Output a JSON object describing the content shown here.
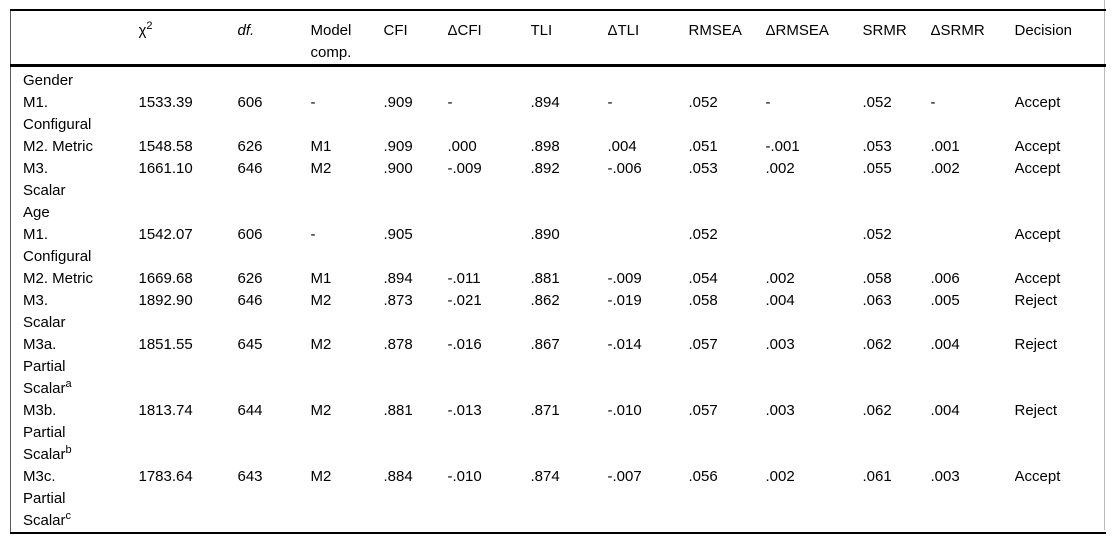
{
  "table": {
    "title_semantic": "measurement-invariance-fit-indices",
    "headers": [
      "",
      "χ^2",
      "df.",
      "Model comp.",
      "CFI",
      "ΔCFI",
      "TLI",
      "ΔTLI",
      "RMSEA",
      "ΔRMSEA",
      "SRMR",
      "ΔSRMR",
      "Decision"
    ],
    "column_keys": [
      "model",
      "chi2",
      "df",
      "model-comp",
      "cfi",
      "delta-cfi",
      "tli",
      "delta-tli",
      "rmsea",
      "delta-rmsea",
      "srmr",
      "delta-srmr",
      "decision"
    ],
    "rows": [
      {
        "section": "Gender"
      },
      {
        "label_lines": [
          "M1.",
          "Configural"
        ],
        "values": [
          "1533.39",
          "606",
          "-",
          ".909",
          "-",
          ".894",
          "-",
          ".052",
          "-",
          ".052",
          "-",
          "Accept"
        ]
      },
      {
        "label_lines": [
          "M2. Metric"
        ],
        "values": [
          "1548.58",
          "626",
          "M1",
          ".909",
          ".000",
          ".898",
          ".004",
          ".051",
          "-.001",
          ".053",
          ".001",
          "Accept"
        ]
      },
      {
        "label_lines": [
          "M3.",
          "Scalar"
        ],
        "values": [
          "1661.10",
          "646",
          "M2",
          ".900",
          "-.009",
          ".892",
          "-.006",
          ".053",
          ".002",
          ".055",
          ".002",
          "Accept"
        ]
      },
      {
        "section": "Age"
      },
      {
        "label_lines": [
          "M1.",
          "Configural"
        ],
        "values": [
          "1542.07",
          "606",
          "-",
          ".905",
          "",
          ".890",
          "",
          ".052",
          "",
          ".052",
          "",
          "Accept"
        ]
      },
      {
        "label_lines": [
          "M2. Metric"
        ],
        "values": [
          "1669.68",
          "626",
          "M1",
          ".894",
          "-.011",
          ".881",
          "-.009",
          ".054",
          ".002",
          ".058",
          ".006",
          "Accept"
        ]
      },
      {
        "label_lines": [
          "M3.",
          "Scalar"
        ],
        "values": [
          "1892.90",
          "646",
          "M2",
          ".873",
          "-.021",
          ".862",
          "-.019",
          ".058",
          ".004",
          ".063",
          ".005",
          "Reject"
        ]
      },
      {
        "label_lines": [
          "M3a.",
          "Partial",
          "Scalar^a"
        ],
        "values": [
          "1851.55",
          "645",
          "M2",
          ".878",
          "-.016",
          ".867",
          "-.014",
          ".057",
          ".003",
          ".062",
          ".004",
          "Reject"
        ]
      },
      {
        "label_lines": [
          "M3b.",
          "Partial",
          "Scalar^b"
        ],
        "values": [
          "1813.74",
          "644",
          "M2",
          ".881",
          "-.013",
          ".871",
          "-.010",
          ".057",
          ".003",
          ".062",
          ".004",
          "Reject"
        ]
      },
      {
        "label_lines": [
          "M3c.",
          "Partial",
          "Scalar^c"
        ],
        "values": [
          "1783.64",
          "643",
          "M2",
          ".884",
          "-.010",
          ".874",
          "-.007",
          ".056",
          ".002",
          ".061",
          ".003",
          "Accept"
        ]
      }
    ]
  },
  "colors": {
    "text": "#000000",
    "rule": "#000000",
    "page_edge": "#b9b9b9",
    "background": "#ffffff"
  }
}
